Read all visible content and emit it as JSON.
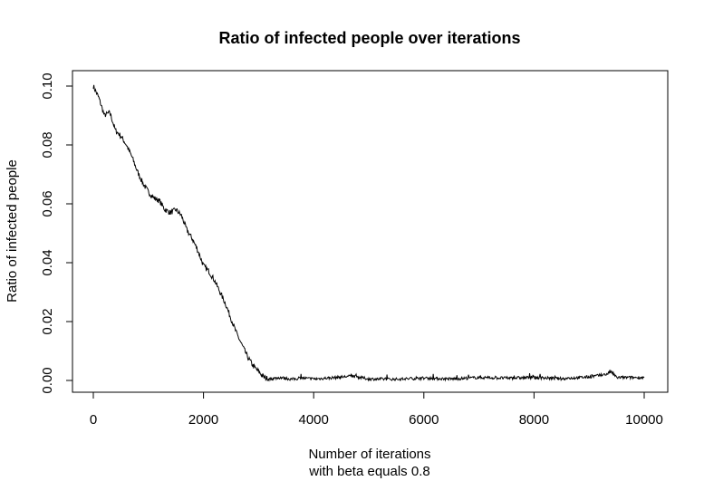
{
  "chart_data": {
    "type": "line",
    "title": "Ratio of infected people over iterations",
    "xlabel_line1": "Number of iterations",
    "xlabel_line2": "with beta equals 0.8",
    "ylabel": "Ratio of infected people",
    "xlim": [
      0,
      10000
    ],
    "ylim": [
      0.0,
      0.1
    ],
    "x_ticks": [
      0,
      2000,
      4000,
      6000,
      8000,
      10000
    ],
    "x_tick_labels": [
      "0",
      "2000",
      "4000",
      "6000",
      "8000",
      "10000"
    ],
    "y_ticks": [
      0.0,
      0.02,
      0.04,
      0.06,
      0.08,
      0.1
    ],
    "y_tick_labels": [
      "0.00",
      "0.02",
      "0.04",
      "0.06",
      "0.08",
      "0.10"
    ],
    "grid": false,
    "series_color": "#000000",
    "series": [
      {
        "x": [
          0,
          100,
          200,
          300,
          400,
          500,
          600,
          700,
          800,
          900,
          1000,
          1100,
          1200,
          1300,
          1400,
          1500,
          1600,
          1700,
          1800,
          1900,
          2000,
          2100,
          2200,
          2300,
          2400,
          2500,
          2600,
          2700,
          2800,
          2900,
          3000,
          3100,
          3200,
          3400,
          3600,
          3800,
          4000,
          4400,
          4700,
          5000,
          5500,
          6000,
          6500,
          7000,
          7500,
          8000,
          8500,
          9000,
          9300,
          9400,
          9500,
          10000
        ],
        "y": [
          0.1,
          0.096,
          0.09,
          0.091,
          0.085,
          0.083,
          0.08,
          0.076,
          0.071,
          0.067,
          0.064,
          0.062,
          0.061,
          0.058,
          0.057,
          0.058,
          0.056,
          0.051,
          0.048,
          0.044,
          0.039,
          0.037,
          0.034,
          0.03,
          0.026,
          0.021,
          0.016,
          0.012,
          0.008,
          0.005,
          0.003,
          0.001,
          0.0005,
          0.001,
          0.0004,
          0.0008,
          0.0005,
          0.001,
          0.0015,
          0.0005,
          0.0004,
          0.0008,
          0.0005,
          0.001,
          0.0008,
          0.001,
          0.0006,
          0.0012,
          0.002,
          0.003,
          0.001,
          0.001
        ]
      }
    ]
  }
}
